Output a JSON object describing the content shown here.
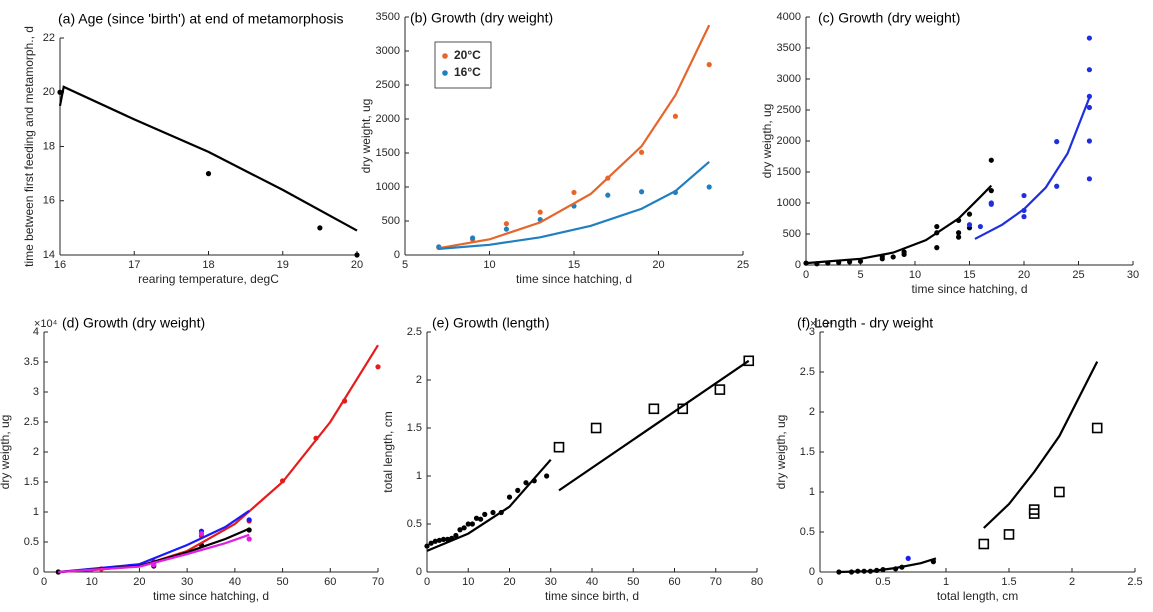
{
  "chart_data": [
    {
      "type": "scatter",
      "title": "(a) Age (since 'birth') at end of metamorphosis",
      "x_label": "rearing temperature, degC",
      "y_label": "time between first feeding and metamorph., d",
      "xlim": [
        16,
        20
      ],
      "xticks": [
        16,
        17,
        18,
        19,
        20
      ],
      "ylim": [
        14,
        22
      ],
      "yticks": [
        14,
        16,
        18,
        20,
        22
      ],
      "series": [
        {
          "mode": "markers",
          "color": "#000000",
          "x": [
            16,
            18,
            19.5,
            20
          ],
          "values": [
            20,
            17,
            15,
            14
          ]
        },
        {
          "mode": "line",
          "color": "#000000",
          "x": [
            16,
            16.05,
            17,
            18,
            19,
            20
          ],
          "values": [
            19.5,
            20.2,
            19.0,
            17.8,
            16.4,
            14.9
          ]
        }
      ]
    },
    {
      "type": "scatter",
      "title": "(b) Growth (dry weight)",
      "x_label": "time since hatching, d",
      "y_label": "dry weight, ug",
      "xlim": [
        5,
        25
      ],
      "xticks": [
        5,
        10,
        15,
        20,
        25
      ],
      "ylim": [
        0,
        3500
      ],
      "yticks": [
        0,
        500,
        1000,
        1500,
        2000,
        2500,
        3000,
        3500
      ],
      "legend": "upper left",
      "series": [
        {
          "name": "20°C",
          "mode": "markers",
          "color": "#e5662a",
          "x": [
            7,
            9,
            11,
            13,
            15,
            17,
            19,
            21,
            23
          ],
          "values": [
            110,
            230,
            460,
            630,
            920,
            1130,
            1510,
            2040,
            2800
          ]
        },
        {
          "name": "16°C",
          "mode": "markers",
          "color": "#1f7fc1",
          "x": [
            7,
            9,
            11,
            13,
            15,
            17,
            19,
            21,
            23
          ],
          "values": [
            120,
            250,
            380,
            520,
            720,
            880,
            930,
            920,
            1000
          ]
        },
        {
          "mode": "line",
          "color": "#e5662a",
          "x": [
            7,
            10,
            13,
            16,
            19,
            21,
            23
          ],
          "values": [
            100,
            230,
            480,
            900,
            1600,
            2350,
            3380
          ]
        },
        {
          "mode": "line",
          "color": "#1f7fc1",
          "x": [
            7,
            10,
            13,
            16,
            19,
            21,
            23
          ],
          "values": [
            90,
            150,
            260,
            430,
            680,
            940,
            1370
          ]
        }
      ]
    },
    {
      "type": "scatter",
      "title": "(c)  Growth (dry weight)",
      "x_label": "time since hatching, d",
      "y_label": "dry weigth, ug",
      "xlim": [
        0,
        30
      ],
      "xticks": [
        0,
        5,
        10,
        15,
        20,
        25,
        30
      ],
      "ylim": [
        0,
        4000
      ],
      "yticks": [
        0,
        500,
        1000,
        1500,
        2000,
        2500,
        3000,
        3500,
        4000
      ],
      "series": [
        {
          "mode": "markers",
          "color": "#000000",
          "x": [
            0,
            1,
            2,
            3,
            4,
            5,
            7,
            7,
            8,
            9,
            9,
            12,
            12,
            12,
            14,
            14,
            14,
            15,
            15,
            17,
            17
          ],
          "values": [
            30,
            20,
            30,
            40,
            50,
            60,
            100,
            140,
            130,
            170,
            210,
            280,
            520,
            620,
            450,
            520,
            720,
            600,
            820,
            1200,
            1690
          ]
        },
        {
          "mode": "markers",
          "color": "#1f2fe0",
          "x": [
            15,
            16,
            17,
            17,
            20,
            20,
            20,
            23,
            23,
            26,
            26,
            26,
            26,
            26,
            26
          ],
          "values": [
            650,
            620,
            980,
            1000,
            780,
            880,
            1120,
            1270,
            1990,
            1390,
            2000,
            2540,
            2720,
            3150,
            3660
          ]
        },
        {
          "mode": "line",
          "color": "#000000",
          "x": [
            0,
            5,
            8,
            11,
            14,
            16,
            17
          ],
          "values": [
            30,
            100,
            200,
            400,
            750,
            1100,
            1280
          ]
        },
        {
          "mode": "line",
          "color": "#1f2fe0",
          "x": [
            15.5,
            18,
            20,
            22,
            24,
            26
          ],
          "values": [
            420,
            650,
            900,
            1250,
            1800,
            2700
          ]
        }
      ]
    },
    {
      "type": "scatter",
      "title": "(d) Growth (dry weight)",
      "x_label": "time since hatching, d",
      "y_label": "dry weigth, ug",
      "y_multiplier": "×10⁴",
      "xlim": [
        0,
        70
      ],
      "xticks": [
        0,
        10,
        20,
        30,
        40,
        50,
        60,
        70
      ],
      "ylim": [
        0,
        4
      ],
      "yticks": [
        0,
        0.5,
        1,
        1.5,
        2,
        2.5,
        3,
        3.5,
        4
      ],
      "series": [
        {
          "mode": "markers",
          "color": "#e61b1b",
          "x": [
            3,
            12,
            23,
            33,
            43,
            50,
            57,
            63,
            70
          ],
          "values": [
            0,
            0.05,
            0.15,
            0.6,
            0.85,
            1.52,
            2.23,
            2.85,
            3.42
          ]
        },
        {
          "mode": "markers",
          "color": "#000000",
          "x": [
            3,
            23,
            33,
            43
          ],
          "values": [
            0,
            0.1,
            0.45,
            0.7
          ]
        },
        {
          "mode": "markers",
          "color": "#1a1aff",
          "x": [
            23,
            33,
            43
          ],
          "values": [
            0.17,
            0.68,
            0.87
          ]
        },
        {
          "mode": "markers",
          "color": "#e020e0",
          "x": [
            23,
            33,
            43
          ],
          "values": [
            0.12,
            0.64,
            0.55
          ]
        },
        {
          "mode": "line",
          "color": "#e61b1b",
          "x": [
            3,
            10,
            20,
            30,
            40,
            50,
            60,
            70
          ],
          "values": [
            0,
            0.03,
            0.1,
            0.35,
            0.8,
            1.5,
            2.5,
            3.78
          ]
        },
        {
          "mode": "line",
          "color": "#1a1aff",
          "x": [
            3,
            20,
            30,
            38,
            43
          ],
          "values": [
            0,
            0.13,
            0.45,
            0.75,
            1.02
          ]
        },
        {
          "mode": "line",
          "color": "#000000",
          "x": [
            3,
            20,
            30,
            38,
            43
          ],
          "values": [
            0,
            0.1,
            0.33,
            0.55,
            0.72
          ]
        },
        {
          "mode": "line",
          "color": "#e020e0",
          "x": [
            3,
            20,
            30,
            38,
            43
          ],
          "values": [
            0,
            0.09,
            0.3,
            0.48,
            0.62
          ]
        }
      ]
    },
    {
      "type": "scatter",
      "title": "(e) Growth (length)",
      "x_label": "time since birth, d",
      "y_label": "total length, cm",
      "xlim": [
        0,
        80
      ],
      "xticks": [
        0,
        10,
        20,
        30,
        40,
        50,
        60,
        70,
        80
      ],
      "ylim": [
        0,
        2.5
      ],
      "yticks": [
        0,
        0.5,
        1,
        1.5,
        2,
        2.5
      ],
      "series": [
        {
          "mode": "markers",
          "color": "#000000",
          "x": [
            0,
            1,
            2,
            3,
            4,
            5,
            6,
            7,
            8,
            9,
            10,
            11,
            12,
            13,
            14,
            16,
            18,
            20,
            22,
            24,
            26,
            29
          ],
          "values": [
            0.27,
            0.3,
            0.32,
            0.33,
            0.34,
            0.34,
            0.35,
            0.38,
            0.44,
            0.46,
            0.5,
            0.5,
            0.56,
            0.55,
            0.6,
            0.62,
            0.62,
            0.78,
            0.85,
            0.93,
            0.95,
            1.0
          ]
        },
        {
          "mode": "markers",
          "marker": "square",
          "color": "#000000",
          "x": [
            32,
            41,
            55,
            62,
            71,
            78
          ],
          "values": [
            1.3,
            1.5,
            1.7,
            1.7,
            1.9,
            2.2
          ]
        },
        {
          "mode": "line",
          "color": "#000000",
          "x": [
            0,
            10,
            20,
            30
          ],
          "values": [
            0.22,
            0.4,
            0.68,
            1.17
          ]
        },
        {
          "mode": "line",
          "color": "#000000",
          "x": [
            32,
            78
          ],
          "values": [
            0.85,
            2.2
          ]
        }
      ]
    },
    {
      "type": "scatter",
      "title": "(f) Length - dry weight",
      "x_label": "total length, cm",
      "y_label": "dry weigth, ug",
      "y_multiplier": "×10⁴",
      "xlim": [
        0,
        2.5
      ],
      "xticks": [
        0,
        0.5,
        1,
        1.5,
        2,
        2.5
      ],
      "ylim": [
        0,
        3
      ],
      "yticks": [
        0,
        0.5,
        1,
        1.5,
        2,
        2.5,
        3
      ],
      "series": [
        {
          "mode": "markers",
          "color": "#000000",
          "x": [
            0.15,
            0.25,
            0.3,
            0.35,
            0.4,
            0.45,
            0.5,
            0.6,
            0.65,
            0.9
          ],
          "values": [
            0,
            0,
            0.01,
            0.01,
            0.01,
            0.02,
            0.03,
            0.04,
            0.06,
            0.13
          ]
        },
        {
          "mode": "markers",
          "color": "#1a1aff",
          "x": [
            0.7
          ],
          "values": [
            0.17
          ]
        },
        {
          "mode": "markers",
          "marker": "square",
          "color": "#000000",
          "x": [
            1.3,
            1.5,
            1.7,
            1.7,
            1.9,
            2.2
          ],
          "values": [
            0.35,
            0.47,
            0.73,
            0.78,
            1.0,
            1.8
          ]
        },
        {
          "mode": "line",
          "color": "#000000",
          "x": [
            0.15,
            0.4,
            0.6,
            0.8,
            0.92
          ],
          "values": [
            0,
            0.01,
            0.05,
            0.11,
            0.17
          ]
        },
        {
          "mode": "line",
          "color": "#000000",
          "x": [
            1.3,
            1.5,
            1.7,
            1.9,
            2.2
          ],
          "values": [
            0.55,
            0.85,
            1.25,
            1.7,
            2.63
          ]
        }
      ]
    }
  ]
}
